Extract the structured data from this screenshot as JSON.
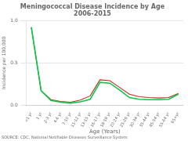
{
  "chart_data": {
    "type": "line",
    "title": "Meningococcal Disease Incidence by Age\n2006-2015",
    "xlabel": "Age (Years)",
    "ylabel": "Incidence per 100,000",
    "annotations": [
      "SOURCE: CDC, National Notifiable Diseases Surveillance System"
    ],
    "categories": [
      "<1 yr",
      "1 yr",
      "2-3 yr",
      "4-6 yr",
      "7-10 yr",
      "11-12 yr",
      "13-15 yr",
      "16-17 yr",
      "18-19 yr",
      "20-24 yr",
      "25-29 yr",
      "30-34 yr",
      "35-44 yr",
      "45-54 yr",
      "55-64 yr",
      "65+yr"
    ],
    "series": [
      {
        "color": "#cc2222",
        "values": [
          0.92,
          0.17,
          0.065,
          0.045,
          0.035,
          0.06,
          0.11,
          0.3,
          0.29,
          0.21,
          0.13,
          0.1,
          0.09,
          0.085,
          0.09,
          0.14
        ]
      },
      {
        "color": "#00cc44",
        "values": [
          0.92,
          0.17,
          0.055,
          0.035,
          0.025,
          0.04,
          0.07,
          0.27,
          0.26,
          0.18,
          0.09,
          0.07,
          0.065,
          0.065,
          0.07,
          0.13
        ]
      }
    ],
    "ylim": [
      0.0,
      1.0
    ],
    "yticks": [
      {
        "value": 0,
        "label": "0.0"
      },
      0.5,
      {
        "value": 1,
        "label": "1.0"
      }
    ],
    "grid": true
  }
}
